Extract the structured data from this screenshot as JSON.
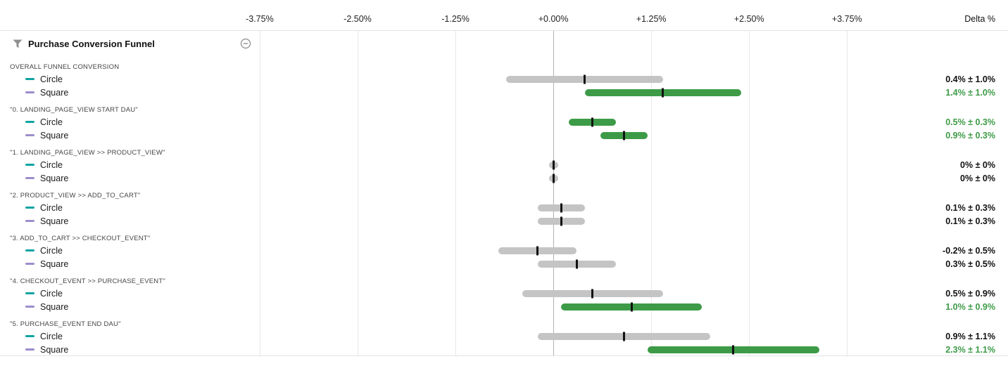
{
  "axis": {
    "min": -3.83,
    "max": 3.9,
    "ticks": [
      {
        "value": -3.75,
        "label": "-3.75%"
      },
      {
        "value": -2.5,
        "label": "-2.50%"
      },
      {
        "value": -1.25,
        "label": "-1.25%"
      },
      {
        "value": 0,
        "label": "+0.00%"
      },
      {
        "value": 1.25,
        "label": "+1.25%"
      },
      {
        "value": 2.5,
        "label": "+2.50%"
      },
      {
        "value": 3.75,
        "label": "+3.75%"
      }
    ],
    "delta_label": "Delta %"
  },
  "panel": {
    "title": "Purchase Conversion Funnel"
  },
  "colors": {
    "significant": "#3d9b47",
    "neutral_bar": "#c4c4c4",
    "circle_series": "#0fa3a3",
    "square_series": "#9d8ccc",
    "marker": "#111111",
    "neutral_text": "#111111"
  },
  "chart_data": {
    "type": "interval",
    "title": "Purchase Conversion Funnel",
    "xlabel": "Delta %",
    "xlim": [
      -3.83,
      3.9
    ],
    "x_ticks": [
      -3.75,
      -2.5,
      -1.25,
      0,
      1.25,
      2.5,
      3.75
    ],
    "groups": [
      {
        "label": "OVERALL FUNNEL CONVERSION",
        "rows": [
          {
            "series": "Circle",
            "delta": 0.4,
            "ci": 1.0,
            "significant": false,
            "display": "0.4% ± 1.0%"
          },
          {
            "series": "Square",
            "delta": 1.4,
            "ci": 1.0,
            "significant": true,
            "display": "1.4% ± 1.0%"
          }
        ]
      },
      {
        "label": "\"0. LANDING_PAGE_VIEW START DAU\"",
        "rows": [
          {
            "series": "Circle",
            "delta": 0.5,
            "ci": 0.3,
            "significant": true,
            "display": "0.5% ± 0.3%"
          },
          {
            "series": "Square",
            "delta": 0.9,
            "ci": 0.3,
            "significant": true,
            "display": "0.9% ± 0.3%"
          }
        ]
      },
      {
        "label": "\"1. LANDING_PAGE_VIEW >> PRODUCT_VIEW\"",
        "rows": [
          {
            "series": "Circle",
            "delta": 0,
            "ci": 0,
            "significant": false,
            "display": "0% ± 0%"
          },
          {
            "series": "Square",
            "delta": 0,
            "ci": 0,
            "significant": false,
            "display": "0% ± 0%"
          }
        ]
      },
      {
        "label": "\"2. PRODUCT_VIEW >> ADD_TO_CART\"",
        "rows": [
          {
            "series": "Circle",
            "delta": 0.1,
            "ci": 0.3,
            "significant": false,
            "display": "0.1% ± 0.3%"
          },
          {
            "series": "Square",
            "delta": 0.1,
            "ci": 0.3,
            "significant": false,
            "display": "0.1% ± 0.3%"
          }
        ]
      },
      {
        "label": "\"3. ADD_TO_CART >> CHECKOUT_EVENT\"",
        "rows": [
          {
            "series": "Circle",
            "delta": -0.2,
            "ci": 0.5,
            "significant": false,
            "display": "-0.2% ± 0.5%"
          },
          {
            "series": "Square",
            "delta": 0.3,
            "ci": 0.5,
            "significant": false,
            "display": "0.3% ± 0.5%"
          }
        ]
      },
      {
        "label": "\"4. CHECKOUT_EVENT >> PURCHASE_EVENT\"",
        "rows": [
          {
            "series": "Circle",
            "delta": 0.5,
            "ci": 0.9,
            "significant": false,
            "display": "0.5% ± 0.9%"
          },
          {
            "series": "Square",
            "delta": 1.0,
            "ci": 0.9,
            "significant": true,
            "display": "1.0% ± 0.9%"
          }
        ]
      },
      {
        "label": "\"5. PURCHASE_EVENT END DAU\"",
        "rows": [
          {
            "series": "Circle",
            "delta": 0.9,
            "ci": 1.1,
            "significant": false,
            "display": "0.9% ± 1.1%"
          },
          {
            "series": "Square",
            "delta": 2.3,
            "ci": 1.1,
            "significant": true,
            "display": "2.3% ± 1.1%"
          }
        ]
      }
    ]
  }
}
